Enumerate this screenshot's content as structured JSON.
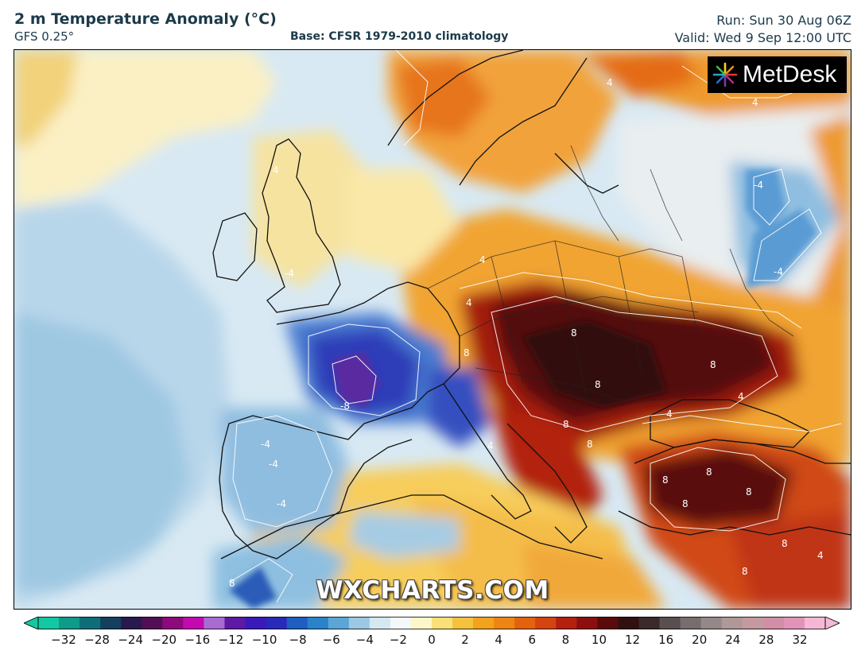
{
  "header": {
    "title": "2 m Temperature Anomaly (°C)",
    "model": "GFS 0.25°",
    "base": "Base: CFSR 1979-2010 climatology",
    "run": "Run: Sun 30 Aug 06Z",
    "valid": "Valid: Wed 9 Sep 12:00 UTC"
  },
  "logo": {
    "text": "MetDesk"
  },
  "watermark": "WXCHARTS.COM",
  "map": {
    "contour_labels": [
      "-8",
      "-4",
      "4",
      "8"
    ]
  },
  "colorbar": {
    "labels": [
      "−32",
      "−28",
      "−24",
      "−20",
      "−16",
      "−12",
      "−10",
      "−8",
      "−6",
      "−4",
      "−2",
      "0",
      "2",
      "4",
      "6",
      "8",
      "10",
      "12",
      "16",
      "20",
      "24",
      "28",
      "32"
    ],
    "colors": [
      "#12c9a3",
      "#0f9a8a",
      "#0d6e7a",
      "#14405e",
      "#281a4e",
      "#520f56",
      "#8c0a7c",
      "#c20ab0",
      "#a86cd0",
      "#5d1aa4",
      "#3a1ab8",
      "#2a2ab8",
      "#1e5ec0",
      "#2a82c8",
      "#5aa6d6",
      "#9cc8e4",
      "#d4e8f2",
      "#f4f8f8",
      "#fdf6c8",
      "#f9e07a",
      "#f4c23c",
      "#f2a21c",
      "#ee8414",
      "#e2620e",
      "#d24410",
      "#b4200e",
      "#8c0e0e",
      "#5a0a0a",
      "#321010",
      "#3a2a2a",
      "#585050",
      "#766e6e",
      "#948888",
      "#b09898",
      "#c49aa0",
      "#d28ea6",
      "#e294b8",
      "#f4b8d4"
    ]
  }
}
